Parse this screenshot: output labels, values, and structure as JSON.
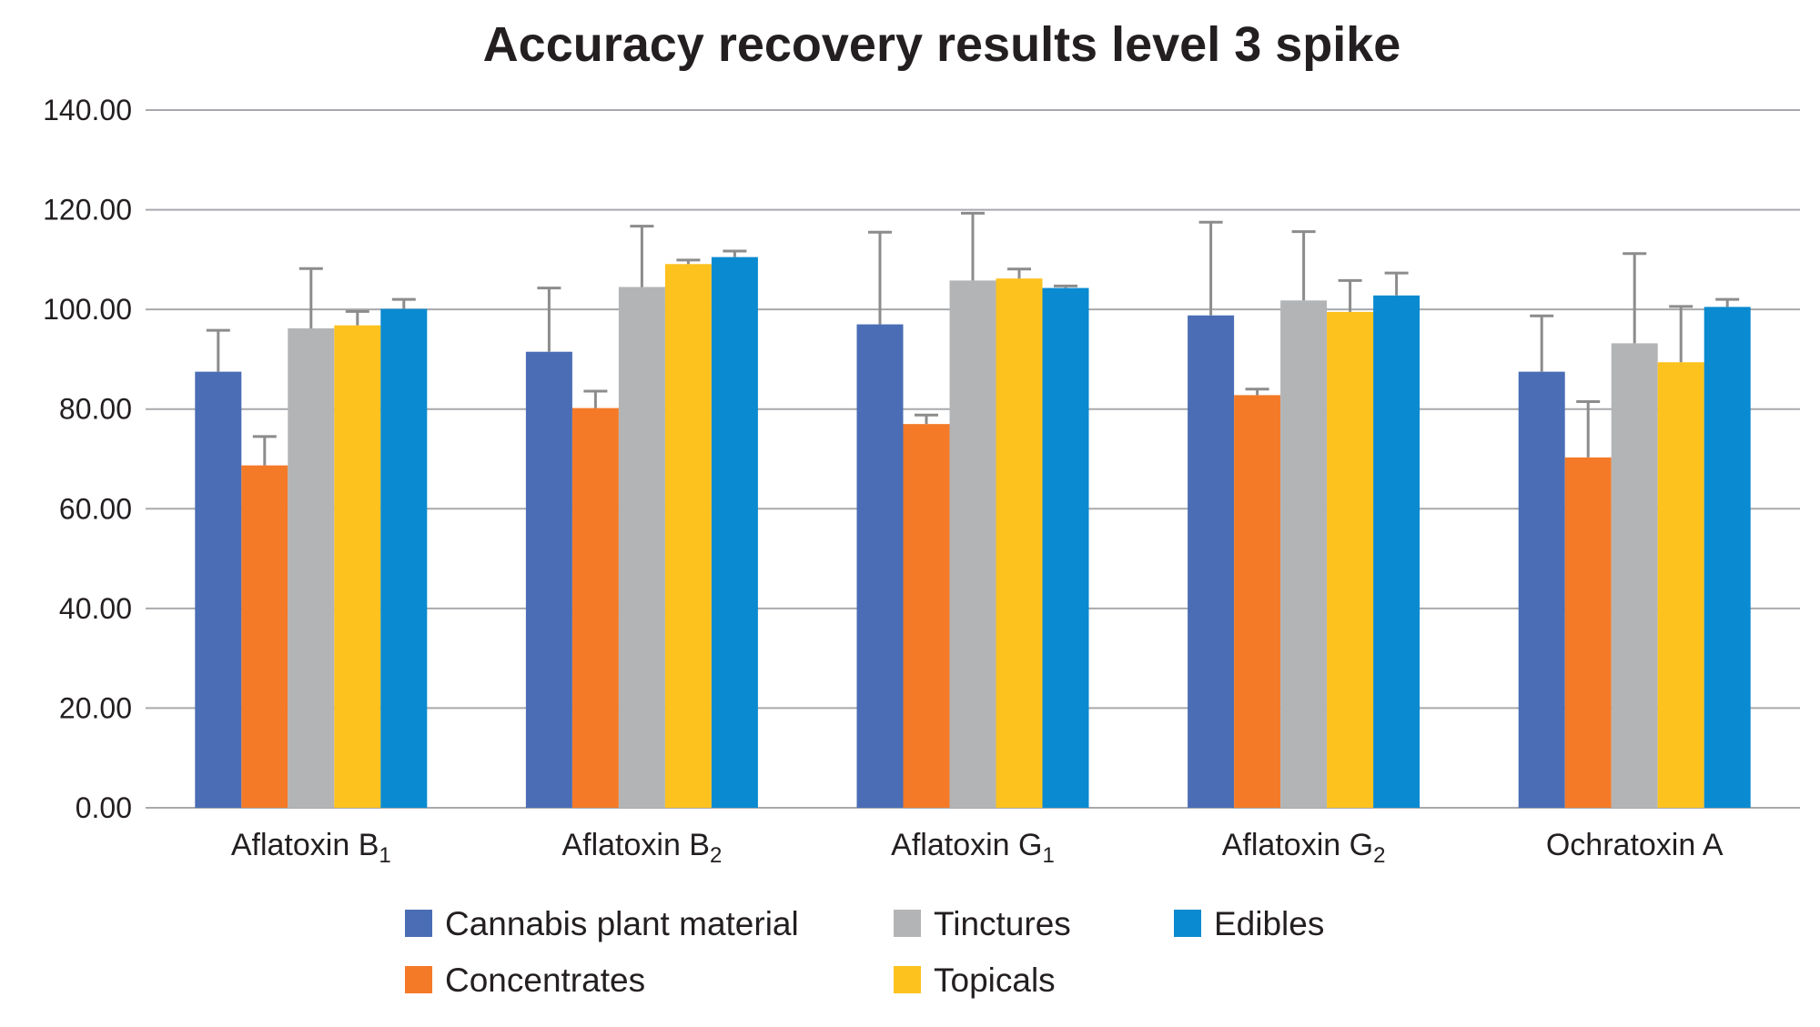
{
  "chart_data": {
    "type": "bar",
    "title": "Accuracy recovery results level 3 spike",
    "xlabel": "",
    "ylabel": "",
    "ylim": [
      0,
      140
    ],
    "yticks": [
      "0.00",
      "20.00",
      "40.00",
      "60.00",
      "80.00",
      "100.00",
      "120.00",
      "140.00"
    ],
    "categories": [
      {
        "base": "Aflatoxin B",
        "sub": "1"
      },
      {
        "base": "Aflatoxin B",
        "sub": "2"
      },
      {
        "base": "Aflatoxin G",
        "sub": "1"
      },
      {
        "base": "Aflatoxin G",
        "sub": "2"
      },
      {
        "base": "Ochratoxin A",
        "sub": ""
      }
    ],
    "series": [
      {
        "name": "Cannabis plant material",
        "color": "#4a6db5",
        "values": [
          87.5,
          91.5,
          97.0,
          98.8,
          87.5
        ],
        "errors": [
          8.3,
          12.8,
          18.5,
          18.7,
          11.2
        ]
      },
      {
        "name": "Concentrates",
        "color": "#f47a28",
        "values": [
          68.7,
          80.2,
          77.0,
          82.8,
          70.3
        ],
        "errors": [
          5.8,
          3.4,
          1.8,
          1.2,
          11.2
        ]
      },
      {
        "name": "Tinctures",
        "color": "#b3b4b6",
        "values": [
          96.2,
          104.5,
          105.8,
          101.8,
          93.2
        ],
        "errors": [
          12.0,
          12.2,
          13.5,
          13.8,
          18.0
        ]
      },
      {
        "name": "Topicals",
        "color": "#fdc21e",
        "values": [
          96.8,
          109.1,
          106.2,
          99.5,
          89.4
        ],
        "errors": [
          2.8,
          0.8,
          1.9,
          6.3,
          11.2
        ]
      },
      {
        "name": "Edibles",
        "color": "#0a8ad0",
        "values": [
          100.1,
          110.5,
          104.3,
          102.8,
          100.5
        ],
        "errors": [
          1.9,
          1.2,
          0.4,
          4.5,
          1.5
        ]
      }
    ],
    "legend_position": "bottom"
  }
}
